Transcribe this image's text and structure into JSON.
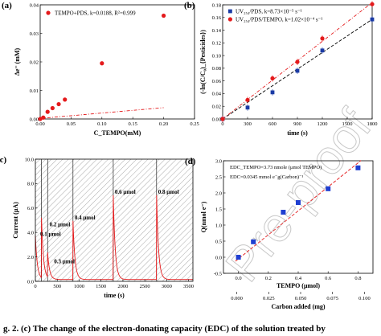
{
  "caption": "g. 2. (c) The change of the electron-donating capacity (EDC) of the solution treated by",
  "watermark": "Pre-proof",
  "chart_data": [
    {
      "panel": "(a)",
      "type": "scatter",
      "xlabel": "C_TEMPO(mM)",
      "ylabel": "Δe⁻ (mM)",
      "xlim": [
        0,
        0.25
      ],
      "ylim": [
        0,
        0.04
      ],
      "xticks": [
        0.0,
        0.05,
        0.1,
        0.15,
        0.2,
        0.25
      ],
      "xtick_labels": [
        "0.00",
        "0.05",
        "0.10",
        "0.15",
        "0.20",
        "0.25"
      ],
      "yticks": [
        0.0,
        0.01,
        0.02,
        0.03,
        0.04
      ],
      "ytick_labels": [
        "0.00",
        "0.01",
        "0.02",
        "0.03",
        "0.04"
      ],
      "legend": "TEMPO+PDS,  k=0.0188,  R²=0.999",
      "legend_position": "top-left",
      "series": [
        {
          "name": "TEMPO+PDS",
          "color": "#e41a1c",
          "x": [
            0.0,
            0.005,
            0.012,
            0.02,
            0.03,
            0.04,
            0.1,
            0.2
          ],
          "y": [
            0.0,
            0.0005,
            0.0025,
            0.0038,
            0.0052,
            0.0068,
            0.0195,
            0.0362
          ]
        }
      ],
      "fit": {
        "slope": 0.0188,
        "intercept": 0.0002,
        "x_range": [
          0,
          0.2
        ],
        "color": "#e41a1c"
      }
    },
    {
      "panel": "(b)",
      "type": "scatter",
      "xlabel": "time (s)",
      "ylabel": "(-ln(C/C₀)_{Pesticides})",
      "xlim": [
        0,
        1800
      ],
      "ylim": [
        0,
        0.18
      ],
      "xticks": [
        0,
        300,
        600,
        900,
        1200,
        1500,
        1800
      ],
      "xtick_labels": [
        "0",
        "300",
        "600",
        "900",
        "1200",
        "1500",
        "1800"
      ],
      "yticks": [
        0.0,
        0.02,
        0.04,
        0.06,
        0.08,
        0.1,
        0.12,
        0.14,
        0.16,
        0.18
      ],
      "ytick_labels": [
        "0.00",
        "0.02",
        "0.04",
        "0.06",
        "0.08",
        "0.10",
        "0.12",
        "0.14",
        "0.16",
        "0.18"
      ],
      "legend_position": "top-left",
      "series": [
        {
          "name": "UV₂₅₄/PDS,  k=8.73×10⁻⁵ s⁻¹",
          "color": "#1a3aa5",
          "marker": "square",
          "x": [
            0,
            300,
            600,
            900,
            1200,
            1800
          ],
          "y": [
            0.0,
            0.018,
            0.042,
            0.076,
            0.108,
            0.157
          ]
        },
        {
          "name": "UV₂₅₄/PDS/TEMPO,  k=1.02×10⁻⁴ s⁻¹",
          "color": "#e41a1c",
          "marker": "circle",
          "x": [
            0,
            300,
            600,
            900,
            1200,
            1800
          ],
          "y": [
            0.0,
            0.03,
            0.064,
            0.09,
            0.127,
            0.181
          ]
        }
      ],
      "fits": [
        {
          "slope": 8.73e-05,
          "color": "#000000"
        },
        {
          "slope": 0.000102,
          "color": "#e41a1c"
        }
      ]
    },
    {
      "panel": "(c)",
      "type": "line",
      "xlabel": "time (s)",
      "ylabel": "Current (μA)",
      "xlim": [
        0,
        3600
      ],
      "ylim": [
        0,
        10
      ],
      "xticks": [
        0,
        500,
        1000,
        1500,
        2000,
        2500,
        3000,
        3500
      ],
      "xtick_labels": [
        "0",
        "500",
        "1000",
        "1500",
        "2000",
        "2500",
        "3000",
        "3500"
      ],
      "yticks": [
        0,
        2,
        4,
        6,
        8,
        10
      ],
      "ytick_labels": [
        "0.0",
        "2.0",
        "4.0",
        "6.0",
        "8.0",
        "10.0"
      ],
      "color": "#e41a1c",
      "injections": [
        {
          "label": "0.1 μmol",
          "t": 0,
          "peak": 3.6
        },
        {
          "label": "0.2 μmol",
          "t": 140,
          "peak": 4.9
        },
        {
          "label": "0.3 μmol",
          "t": 280,
          "peak": 2.0
        },
        {
          "label": "0.4 μmol",
          "t": 860,
          "peak": 4.8
        },
        {
          "label": "0.6 μmol",
          "t": 1780,
          "peak": 6.9
        },
        {
          "label": "0.8 μmol",
          "t": 2770,
          "peak": 6.9
        }
      ]
    },
    {
      "panel": "(d)",
      "type": "scatter",
      "xlabel": "TEMPO (μmol)",
      "xlabel2": "Carbon added (mg)",
      "ylabel": "Q(nmol e⁻)",
      "xlim": [
        -0.1,
        0.9
      ],
      "ylim": [
        -0.5,
        3.0
      ],
      "xticks": [
        0.0,
        0.2,
        0.4,
        0.6,
        0.8
      ],
      "xtick_labels": [
        "0.0",
        "0.2",
        "0.4",
        "0.6",
        "0.8"
      ],
      "x2ticks": [
        0.0,
        0.025,
        0.05,
        0.075,
        0.1
      ],
      "x2tick_labels": [
        "0.000",
        "0.025",
        "0.050",
        "0.075",
        "0.100"
      ],
      "yticks": [
        -0.5,
        0.0,
        0.5,
        1.0,
        1.5,
        2.0,
        2.5,
        3.0
      ],
      "ytick_labels": [
        "-0.5",
        "0.0",
        "0.5",
        "1.0",
        "1.5",
        "2.0",
        "2.5",
        "3.0"
      ],
      "annotations": [
        "EDC_TEMPO=3.73 nmole (μmol TEMPO)",
        "EDC=0.0345 mmol e⁻g(Carbon)⁻¹"
      ],
      "series": [
        {
          "name": "",
          "color": "#1f3fd1",
          "marker": "square",
          "x": [
            0.0,
            0.1,
            0.3,
            0.4,
            0.6,
            0.8
          ],
          "y": [
            0.0,
            0.48,
            1.4,
            1.7,
            2.13,
            2.78
          ]
        }
      ],
      "fit": {
        "slope": 3.73,
        "intercept": -0.05,
        "x_range": [
          -0.02,
          0.82
        ],
        "color": "#e41a1c"
      }
    }
  ]
}
